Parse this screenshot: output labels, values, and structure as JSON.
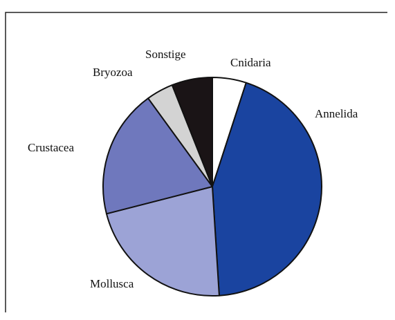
{
  "chart_data": {
    "type": "pie",
    "title": "",
    "start_angle_deg": 0,
    "direction": "clockwise",
    "legend": "none",
    "slices": [
      {
        "label": "Cnidaria",
        "value": 5,
        "color": "#ffffff"
      },
      {
        "label": "Annelida",
        "value": 44,
        "color": "#1a44a0"
      },
      {
        "label": "Mollusca",
        "value": 22,
        "color": "#9ca3d6"
      },
      {
        "label": "Crustacea",
        "value": 19,
        "color": "#6f78bd"
      },
      {
        "label": "Bryozoa",
        "value": 4,
        "color": "#d3d3d3"
      },
      {
        "label": "Sonstige",
        "value": 6,
        "color": "#1a1416"
      }
    ]
  }
}
